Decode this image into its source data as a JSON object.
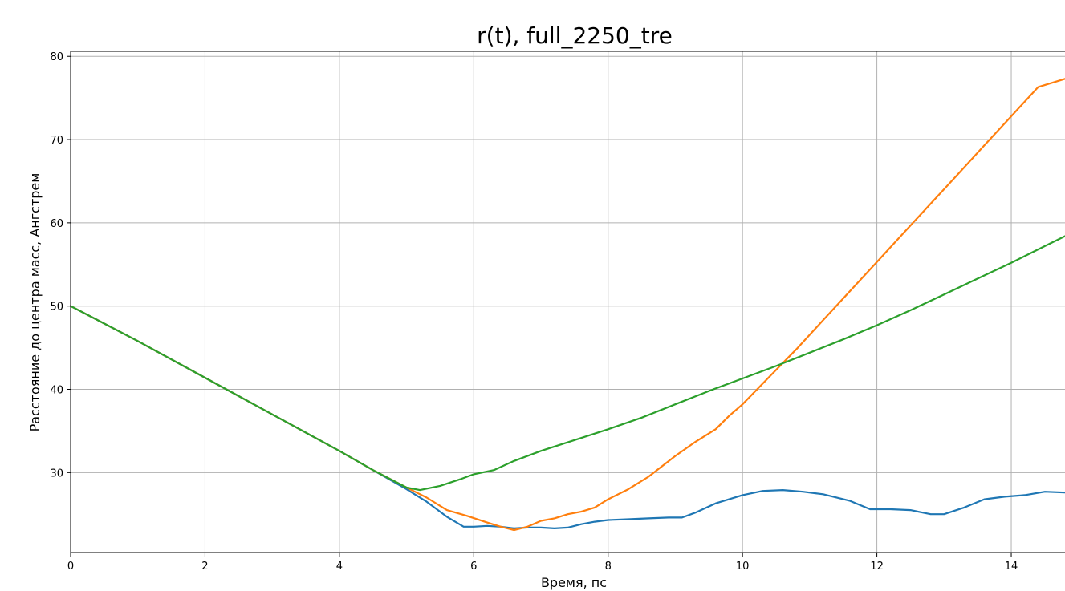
{
  "chart_data": {
    "type": "line",
    "title": "r(t), full_2250_tre",
    "xlabel": "Время, пс",
    "ylabel": "Расстояние до центра масс, Ангстрем",
    "xlim": [
      0,
      14.8
    ],
    "ylim": [
      20.4,
      80.6
    ],
    "xticks": [
      0,
      2,
      4,
      6,
      8,
      10,
      12,
      14
    ],
    "yticks": [
      30,
      40,
      50,
      60,
      70,
      80
    ],
    "grid": true,
    "series": [
      {
        "color": "#1f77b4",
        "x": [
          0,
          1,
          2,
          3,
          4,
          4.5,
          5.0,
          5.3,
          5.6,
          5.85,
          6.0,
          6.2,
          6.4,
          6.6,
          6.8,
          7.0,
          7.2,
          7.4,
          7.6,
          7.8,
          8.0,
          8.3,
          8.6,
          8.9,
          9.1,
          9.3,
          9.6,
          10.0,
          10.3,
          10.6,
          10.9,
          11.2,
          11.6,
          11.9,
          12.2,
          12.5,
          12.8,
          13.0,
          13.3,
          13.6,
          13.9,
          14.2,
          14.5,
          14.8
        ],
        "y": [
          50,
          45.8,
          41.4,
          37.0,
          32.6,
          30.3,
          28.0,
          26.5,
          24.7,
          23.5,
          23.5,
          23.6,
          23.5,
          23.3,
          23.4,
          23.4,
          23.3,
          23.4,
          23.8,
          24.1,
          24.3,
          24.4,
          24.5,
          24.6,
          24.6,
          25.2,
          26.3,
          27.3,
          27.8,
          27.9,
          27.7,
          27.4,
          26.6,
          25.6,
          25.6,
          25.5,
          25.0,
          25.0,
          25.8,
          26.8,
          27.1,
          27.3,
          27.7,
          27.6
        ]
      },
      {
        "color": "#ff7f0e",
        "x": [
          0,
          1,
          2,
          3,
          4,
          4.5,
          5.0,
          5.3,
          5.6,
          5.9,
          6.2,
          6.4,
          6.6,
          6.8,
          7.0,
          7.2,
          7.4,
          7.6,
          7.8,
          8.0,
          8.3,
          8.6,
          9.0,
          9.3,
          9.6,
          9.8,
          10.0,
          10.4,
          10.8,
          11.2,
          11.6,
          12.0,
          12.4,
          12.8,
          13.2,
          13.6,
          14.0,
          14.4,
          14.8
        ],
        "y": [
          50,
          45.8,
          41.4,
          37.0,
          32.6,
          30.3,
          28.2,
          27.0,
          25.5,
          24.8,
          24.0,
          23.5,
          23.1,
          23.5,
          24.2,
          24.5,
          25.0,
          25.3,
          25.8,
          26.8,
          28.0,
          29.5,
          32.0,
          33.7,
          35.2,
          36.8,
          38.2,
          41.5,
          44.8,
          48.3,
          51.8,
          55.3,
          58.8,
          62.3,
          65.8,
          69.3,
          72.8,
          76.3,
          77.3
        ]
      },
      {
        "color": "#2ca02c",
        "x": [
          0,
          1,
          2,
          3,
          4,
          4.5,
          5.0,
          5.2,
          5.5,
          5.8,
          6.0,
          6.3,
          6.6,
          7.0,
          7.5,
          8.0,
          8.5,
          9.0,
          9.5,
          10.0,
          10.5,
          11.0,
          11.5,
          12.0,
          12.5,
          13.0,
          13.5,
          14.0,
          14.5,
          14.8
        ],
        "y": [
          50,
          45.8,
          41.4,
          37.0,
          32.6,
          30.3,
          28.2,
          27.9,
          28.4,
          29.2,
          29.8,
          30.3,
          31.4,
          32.6,
          33.9,
          35.2,
          36.6,
          38.2,
          39.8,
          41.3,
          42.8,
          44.4,
          46.0,
          47.7,
          49.5,
          51.4,
          53.3,
          55.2,
          57.2,
          58.4
        ]
      }
    ]
  }
}
